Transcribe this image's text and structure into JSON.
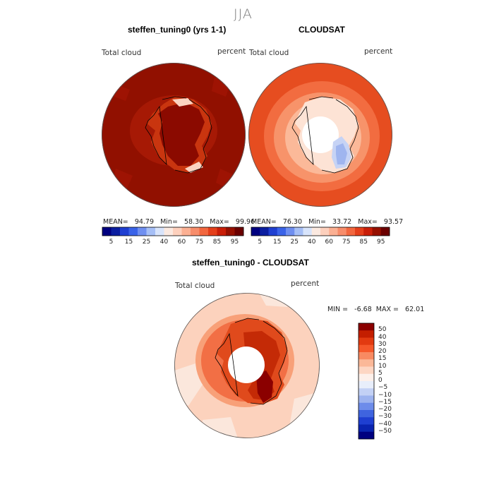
{
  "figure": {
    "title": "JJA"
  },
  "panels": [
    {
      "title": "steffen_tuning0 (yrs 1-1)",
      "left_label": "Total cloud",
      "right_label": "percent",
      "stats": {
        "mean_label": "MEAN=",
        "mean": "94.79",
        "min_label": "Min=",
        "min": "58.30",
        "max_label": "Max=",
        "max": "99.96"
      }
    },
    {
      "title": "CLOUDSAT",
      "left_label": "Total cloud",
      "right_label": "percent",
      "stats": {
        "mean_label": "MEAN=",
        "mean": "76.30",
        "min_label": "Min=",
        "min": "33.72",
        "max_label": "Max=",
        "max": "93.57"
      }
    },
    {
      "title": "steffen_tuning0 - CLOUDSAT",
      "left_label": "Total cloud",
      "right_label": "percent",
      "stats": {
        "min_label": "MIN =",
        "min": "-6.68",
        "max_label": "MAX =",
        "max": "62.01"
      }
    }
  ],
  "colorbar_abs": {
    "ticks": [
      "5",
      "15",
      "25",
      "40",
      "60",
      "75",
      "85",
      "95"
    ],
    "colors": [
      "#000080",
      "#0b1ea0",
      "#1f3fd1",
      "#3a63e8",
      "#6f8ff0",
      "#a6bff6",
      "#d8e4fb",
      "#fbe9e0",
      "#fdd0bd",
      "#fbb093",
      "#f78d6b",
      "#f2673f",
      "#e43f1b",
      "#c91e08",
      "#961000",
      "#6b0000"
    ]
  },
  "colorbar_diff": {
    "ticks": [
      "50",
      "40",
      "30",
      "20",
      "15",
      "10",
      "5",
      "0",
      "−5",
      "−10",
      "−15",
      "−20",
      "−30",
      "−40",
      "−50"
    ],
    "colors": [
      "#8b0000",
      "#c41e00",
      "#e23a10",
      "#f5582a",
      "#f88a62",
      "#fbb898",
      "#fdd6c3",
      "#fdf0ea",
      "#e8eefb",
      "#c3d1f5",
      "#9db3ef",
      "#6d8cea",
      "#3f64df",
      "#1f3fd1",
      "#0a24b0",
      "#000080"
    ]
  },
  "chart_data": [
    {
      "type": "heatmap",
      "title": "steffen_tuning0 (yrs 1-1)",
      "variable": "Total cloud",
      "units": "percent",
      "projection": "south-polar-stereographic",
      "levels": [
        5,
        15,
        25,
        40,
        60,
        75,
        85,
        95
      ],
      "mean": 94.79,
      "min": 58.3,
      "max": 99.96
    },
    {
      "type": "heatmap",
      "title": "CLOUDSAT",
      "variable": "Total cloud",
      "units": "percent",
      "projection": "south-polar-stereographic",
      "levels": [
        5,
        15,
        25,
        40,
        60,
        75,
        85,
        95
      ],
      "mean": 76.3,
      "min": 33.72,
      "max": 93.57
    },
    {
      "type": "heatmap",
      "title": "steffen_tuning0 - CLOUDSAT",
      "variable": "Total cloud",
      "units": "percent",
      "projection": "south-polar-stereographic",
      "levels": [
        -50,
        -40,
        -30,
        -20,
        -15,
        -10,
        -5,
        0,
        5,
        10,
        15,
        20,
        30,
        40,
        50
      ],
      "min": -6.68,
      "max": 62.01
    }
  ]
}
